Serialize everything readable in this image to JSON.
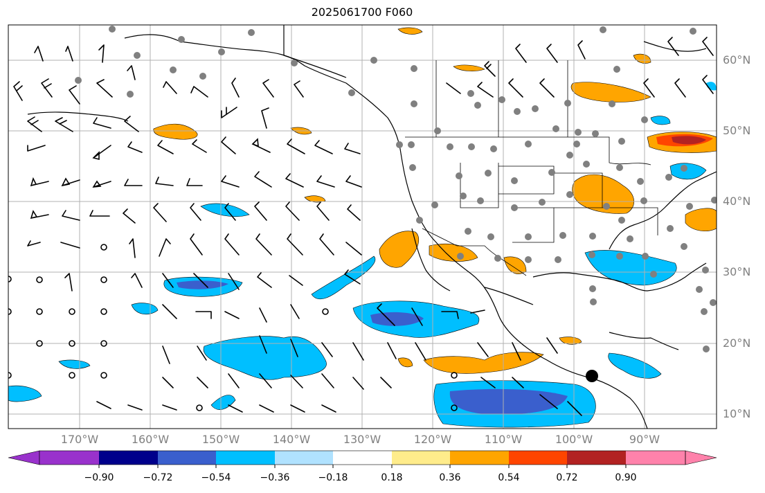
{
  "title": "2025061700 F060",
  "lat_labels": [
    "60°N",
    "50°N",
    "40°N",
    "30°N",
    "20°N",
    "10°N"
  ],
  "lon_labels": [
    "170°W",
    "160°W",
    "150°W",
    "140°W",
    "130°W",
    "120°W",
    "110°W",
    "100°W",
    "90°W"
  ],
  "colorbar": {
    "ticks": [
      "−0.90",
      "−0.72",
      "−0.54",
      "−0.36",
      "−0.18",
      "0.18",
      "0.36",
      "0.54",
      "0.72",
      "0.90"
    ],
    "colors": [
      "#9932CC",
      "#00008B",
      "#3A5FCD",
      "#00BFFF",
      "#B0E2FF",
      "#FFFFFF",
      "#FFEC8B",
      "#FFA500",
      "#FF4500",
      "#B22222",
      "#FF82AB"
    ]
  },
  "map": {
    "gridline_color": "#b0b0b0",
    "coast_color": "#000000",
    "station_dot_color": "#808080",
    "barb_color": "#000000"
  }
}
